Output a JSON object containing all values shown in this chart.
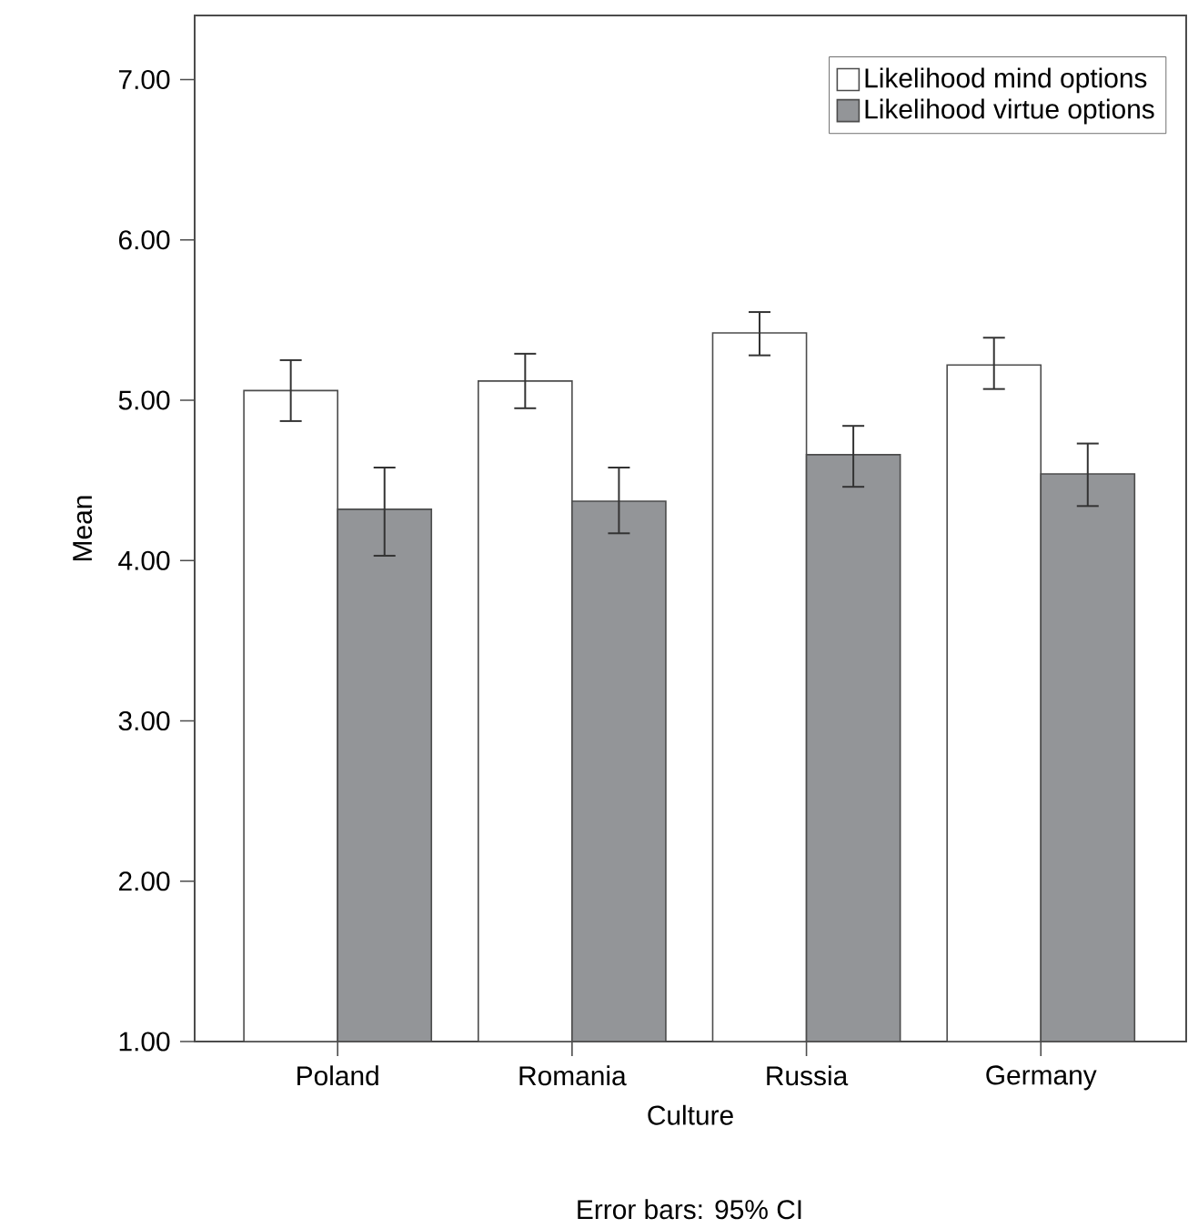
{
  "chart_data": {
    "type": "bar",
    "xlabel": "Culture",
    "ylabel": "Mean",
    "categories": [
      "Poland",
      "Romania",
      "Russia",
      "Germany"
    ],
    "series": [
      {
        "name": "Likelihood mind options",
        "color": "#ffffff",
        "values": [
          5.06,
          5.12,
          5.42,
          5.22
        ],
        "errors": [
          [
            4.87,
            5.25
          ],
          [
            4.95,
            5.29
          ],
          [
            5.28,
            5.55
          ],
          [
            5.07,
            5.39
          ]
        ]
      },
      {
        "name": "Likelihood virtue options",
        "color": "#939598",
        "values": [
          4.32,
          4.37,
          4.66,
          4.54
        ],
        "errors": [
          [
            4.03,
            4.58
          ],
          [
            4.17,
            4.58
          ],
          [
            4.46,
            4.84
          ],
          [
            4.34,
            4.73
          ]
        ]
      }
    ],
    "ylim": [
      1,
      7.4
    ],
    "yticks": [
      {
        "value": 1,
        "label": "1.00"
      },
      {
        "value": 2,
        "label": "2.00"
      },
      {
        "value": 3,
        "label": "3.00"
      },
      {
        "value": 4,
        "label": "4.00"
      },
      {
        "value": 5,
        "label": "5.00"
      },
      {
        "value": 6,
        "label": "6.00"
      },
      {
        "value": 7,
        "label": "7.00"
      }
    ],
    "legend": "top right",
    "annotations": [
      "Error bars: 95% CI"
    ]
  }
}
